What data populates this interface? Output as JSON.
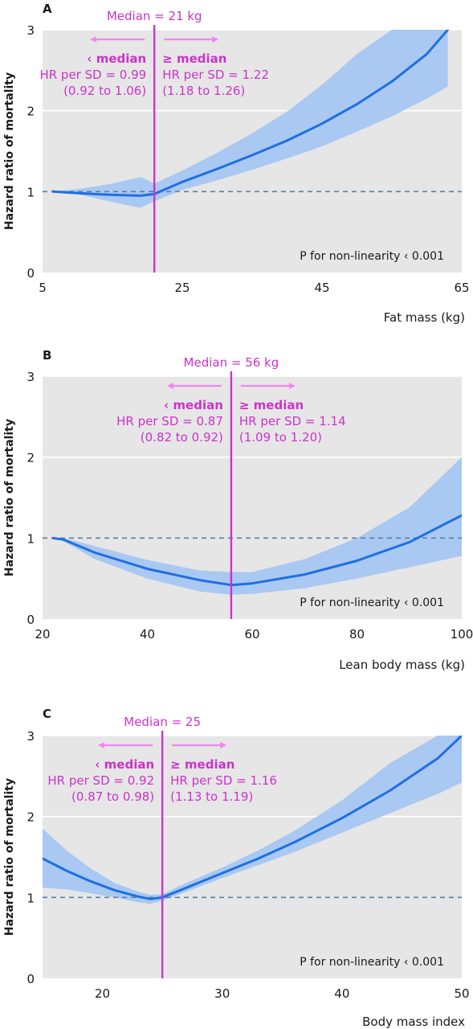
{
  "colors": {
    "panel_bg": "#e6e6e6",
    "gridline": "#ffffff",
    "curve": "#1f6fe0",
    "band": "#a9c8f2",
    "reference_line": "#5a7fa6",
    "median_line": "#cc33cc",
    "arrow": "#ee88ee",
    "annotation_text": "#cc33cc"
  },
  "chart_data": [
    {
      "type": "line",
      "panel_label": "A",
      "xlabel": "Fat mass (kg)",
      "ylabel": "Hazard ratio of mortality",
      "xlim": [
        5,
        65
      ],
      "ylim": [
        0,
        3
      ],
      "x_ticks": [
        5,
        25,
        45,
        65
      ],
      "y_ticks": [
        0,
        1,
        2,
        3
      ],
      "reference_y": 1,
      "median": {
        "value": 21,
        "label": "Median = 21 kg"
      },
      "left": {
        "title": "‹ median",
        "hr": "HR per SD = 0.99",
        "ci": "(0.92 to 1.06)"
      },
      "right": {
        "title": "≥ median",
        "hr": "HR per SD = 1.22",
        "ci": "(1.18 to 1.26)"
      },
      "p_text": "P for non-linearity ‹ 0.001",
      "x": [
        6.5,
        10,
        15,
        19,
        21,
        25,
        30,
        35,
        40,
        45,
        50,
        55,
        60,
        63
      ],
      "y": [
        1.0,
        0.98,
        0.96,
        0.95,
        0.97,
        1.12,
        1.28,
        1.45,
        1.63,
        1.84,
        2.08,
        2.36,
        2.7,
        3.0
      ],
      "lower": [
        1.0,
        0.97,
        0.87,
        0.8,
        0.88,
        1.02,
        1.14,
        1.27,
        1.41,
        1.56,
        1.74,
        1.93,
        2.15,
        2.3
      ],
      "upper": [
        1.0,
        1.03,
        1.1,
        1.18,
        1.1,
        1.26,
        1.48,
        1.72,
        1.99,
        2.32,
        2.7,
        3.0,
        3.0,
        3.0
      ]
    },
    {
      "type": "line",
      "panel_label": "B",
      "xlabel": "Lean body mass (kg)",
      "ylabel": "Hazard ratio of mortality",
      "xlim": [
        20,
        100
      ],
      "ylim": [
        0,
        3
      ],
      "x_ticks": [
        20,
        40,
        60,
        80,
        100
      ],
      "y_ticks": [
        0,
        1,
        2,
        3
      ],
      "reference_y": 1,
      "median": {
        "value": 56,
        "label": "Median = 56 kg"
      },
      "left": {
        "title": "‹ median",
        "hr": "HR per SD = 0.87",
        "ci": "(0.82 to 0.92)"
      },
      "right": {
        "title": "≥ median",
        "hr": "HR per SD = 1.14",
        "ci": "(1.09 to 1.20)"
      },
      "p_text": "P for non-linearity ‹ 0.001",
      "x": [
        22,
        24,
        30,
        40,
        50,
        56,
        60,
        70,
        80,
        90,
        100
      ],
      "y": [
        1.0,
        0.98,
        0.82,
        0.62,
        0.48,
        0.42,
        0.44,
        0.55,
        0.72,
        0.95,
        1.28
      ],
      "lower": [
        1.0,
        0.96,
        0.74,
        0.5,
        0.34,
        0.3,
        0.31,
        0.38,
        0.5,
        0.64,
        0.78
      ],
      "upper": [
        1.0,
        1.0,
        0.9,
        0.73,
        0.6,
        0.58,
        0.58,
        0.74,
        1.0,
        1.38,
        2.0
      ]
    },
    {
      "type": "line",
      "panel_label": "C",
      "xlabel": "Body mass index",
      "ylabel": "Hazard ratio of mortality",
      "xlim": [
        15,
        50
      ],
      "ylim": [
        0,
        3
      ],
      "x_ticks": [
        20,
        30,
        40,
        50
      ],
      "y_ticks": [
        0,
        1,
        2,
        3
      ],
      "reference_y": 1,
      "median": {
        "value": 25,
        "label": "Median = 25"
      },
      "left": {
        "title": "‹ median",
        "hr": "HR per SD = 0.92",
        "ci": "(0.87 to 0.98)"
      },
      "right": {
        "title": "≥ median",
        "hr": "HR per SD = 1.16",
        "ci": "(1.13 to 1.19)"
      },
      "p_text": "P for non-linearity ‹ 0.001",
      "x": [
        15,
        17,
        19,
        21,
        23,
        24,
        25,
        27,
        30,
        33,
        36,
        40,
        44,
        48,
        50
      ],
      "y": [
        1.48,
        1.33,
        1.2,
        1.09,
        1.01,
        0.98,
        1.0,
        1.12,
        1.3,
        1.48,
        1.68,
        1.98,
        2.32,
        2.72,
        3.0
      ],
      "lower": [
        1.12,
        1.1,
        1.05,
        1.0,
        0.94,
        0.92,
        0.96,
        1.07,
        1.24,
        1.4,
        1.56,
        1.8,
        2.04,
        2.28,
        2.42
      ],
      "upper": [
        1.85,
        1.58,
        1.36,
        1.18,
        1.07,
        1.03,
        1.04,
        1.18,
        1.37,
        1.58,
        1.82,
        2.2,
        2.66,
        3.0,
        3.0
      ]
    }
  ]
}
